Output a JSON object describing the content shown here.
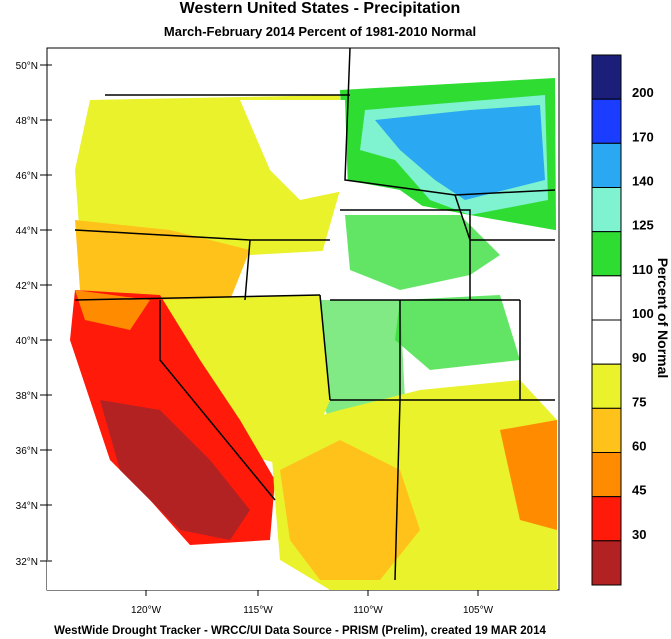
{
  "title": "Western United States - Precipitation",
  "subtitle": "March-February 2014  Percent of 1981-2010 Normal",
  "footer": "WestWide Drought Tracker - WRCC/UI  Data Source - PRISM (Prelim), created 19 MAR 2014",
  "lat_labels": [
    "50°N",
    "48°N",
    "46°N",
    "44°N",
    "42°N",
    "40°N",
    "38°N",
    "36°N",
    "34°N",
    "32°N"
  ],
  "lon_labels": [
    "120°W",
    "115°W",
    "110°W",
    "105°W"
  ],
  "colorbar": {
    "title": "Percent of Normal",
    "labels": [
      "200",
      "170",
      "140",
      "125",
      "110",
      "100",
      "90",
      "75",
      "60",
      "45",
      "30"
    ],
    "colors": [
      "#1c1f7a",
      "#1a3dff",
      "#2aa8f2",
      "#7ff2cf",
      "#2edc32",
      "#ffffff",
      "#ffffff",
      "#e9f22a",
      "#ffc21a",
      "#ff8c00",
      "#ff1a0a",
      "#b22222"
    ]
  }
}
